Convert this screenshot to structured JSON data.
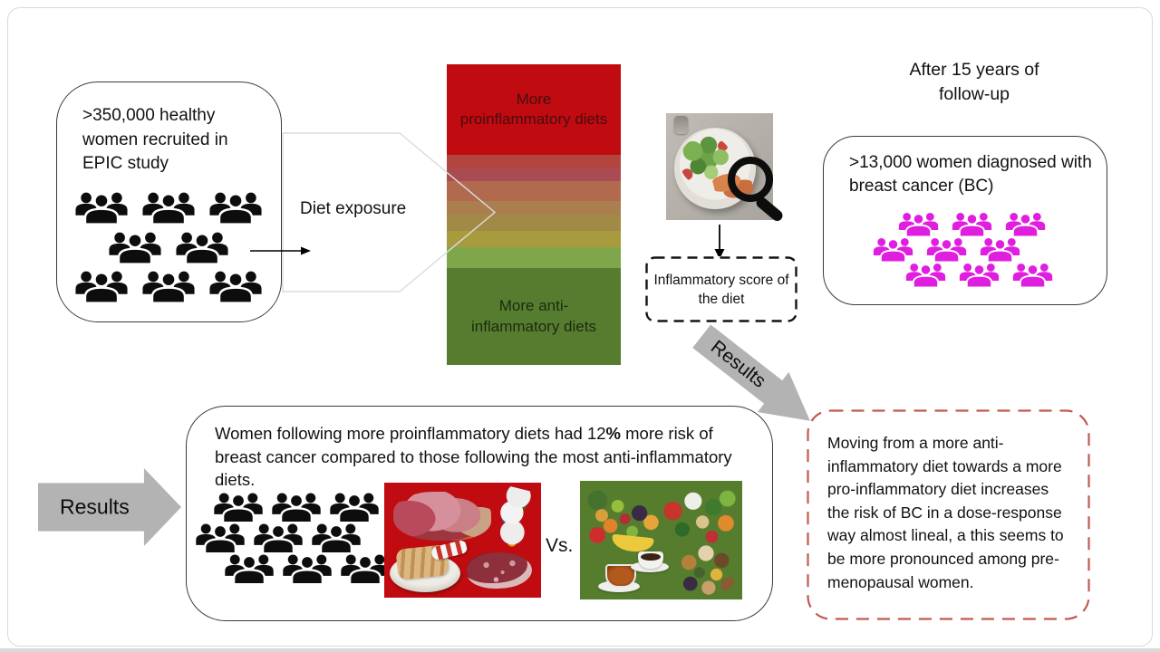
{
  "epic_box": {
    "text": ">350,000 healthy women recruited in EPIC study"
  },
  "diet_exposure": {
    "label": "Diet exposure"
  },
  "gradient": {
    "top_label": "More proinflammatory diets",
    "bottom_label": "More anti-inflammatory diets",
    "top_color": "#c00b10",
    "top_height": 100,
    "bottom_color": "#567d2f",
    "bottom_height": 107,
    "bands": [
      {
        "color": "#b2453e",
        "height": 15
      },
      {
        "color": "#a94b52",
        "height": 14
      },
      {
        "color": "#b26a4f",
        "height": 22
      },
      {
        "color": "#ab7e50",
        "height": 15
      },
      {
        "color": "#a18a46",
        "height": 18
      },
      {
        "color": "#a79b3e",
        "height": 18
      },
      {
        "color": "#7fa64b",
        "height": 23
      }
    ]
  },
  "score_box": {
    "text": "Inflammatory score of the diet"
  },
  "followup": {
    "heading": "After 15 years of follow-up"
  },
  "bc_box": {
    "text": ">13,000 women diagnosed with breast cancer (BC)"
  },
  "results_arrow_diagonal": {
    "label": "Results"
  },
  "results_arrow_left": {
    "label": "Results"
  },
  "findings_box": {
    "text_before": "Women following more proinflammatory diets had 12",
    "bold_text": "%",
    "text_after": " more risk of breast cancer compared to those following the most anti-inflammatory diets.",
    "vs_label": "Vs."
  },
  "conclusion_box": {
    "text": "Moving from a more anti-inflammatory diet towards a more pro-inflammatory diet increases the risk of BC in a dose-response way almost lineal, a this seems to be more pronounced among pre-menopausal women."
  },
  "colors": {
    "proinflammatory_red": "#c00b10",
    "antiinflammatory_green": "#567d2e",
    "bc_magenta": "#e01ee0",
    "population_black": "#0d0d0d",
    "results_arrow_gray": "#b3b3b3",
    "conclusion_dash_red": "#bf5a50",
    "score_dash_black": "#141414"
  },
  "icons": {
    "population": "people-group-icon",
    "diet_inspection": "magnifying-glass-icon",
    "flow": "arrow-icons"
  }
}
